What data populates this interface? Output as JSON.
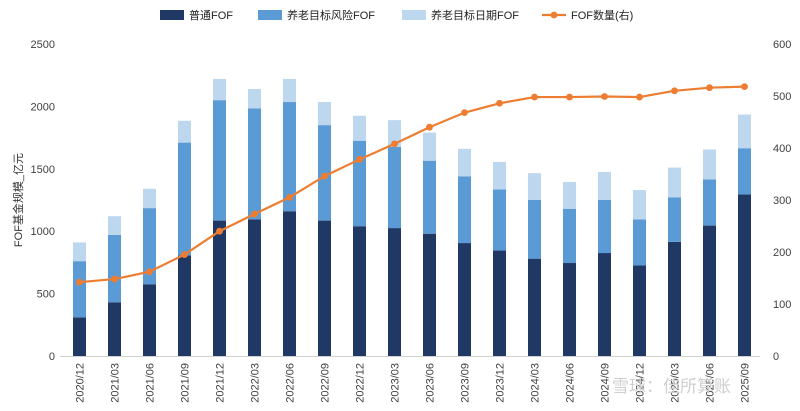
{
  "chart_data": {
    "type": "bar",
    "stacked": true,
    "categories": [
      "2020/12",
      "2021/03",
      "2021/06",
      "2021/09",
      "2021/12",
      "2022/03",
      "2022/06",
      "2022/09",
      "2022/12",
      "2023/03",
      "2023/06",
      "2023/09",
      "2023/12",
      "2024/03",
      "2024/06",
      "2024/09",
      "2024/12",
      "2025/03",
      "2025/06",
      "2025/09"
    ],
    "series": [
      {
        "name": "普通FOF",
        "type": "bar",
        "axis": "left",
        "color": "#1f3864",
        "values": [
          310,
          430,
          575,
          805,
          1085,
          1095,
          1160,
          1085,
          1040,
          1025,
          980,
          905,
          845,
          780,
          745,
          825,
          725,
          915,
          1045,
          1295
        ]
      },
      {
        "name": "养老目标风险FOF",
        "type": "bar",
        "axis": "left",
        "color": "#5b9bd5",
        "values": [
          450,
          540,
          610,
          905,
          965,
          890,
          875,
          765,
          685,
          650,
          585,
          535,
          490,
          470,
          435,
          425,
          370,
          355,
          370,
          370
        ]
      },
      {
        "name": "养老目标日期FOF",
        "type": "bar",
        "axis": "left",
        "color": "#bdd7ee",
        "values": [
          150,
          150,
          155,
          175,
          170,
          155,
          185,
          185,
          200,
          215,
          225,
          220,
          220,
          215,
          215,
          225,
          235,
          240,
          240,
          270
        ]
      },
      {
        "name": "FOF数量(右)",
        "type": "line",
        "axis": "right",
        "color": "#ed7d31",
        "values": [
          142,
          148,
          162,
          195,
          240,
          273,
          305,
          346,
          378,
          408,
          440,
          468,
          486,
          498,
          498,
          499,
          498,
          510,
          516,
          518
        ]
      }
    ],
    "ylabel": "FOF基金规模_亿元",
    "ylim": [
      0,
      2500
    ],
    "yticks": [
      0,
      500,
      1000,
      1500,
      2000,
      2500
    ],
    "y2lim": [
      0,
      600
    ],
    "y2ticks": [
      0,
      100,
      200,
      300,
      400,
      500,
      600
    ],
    "legend": "top-center",
    "grid": false
  },
  "watermark": "雪球：佳所算账"
}
